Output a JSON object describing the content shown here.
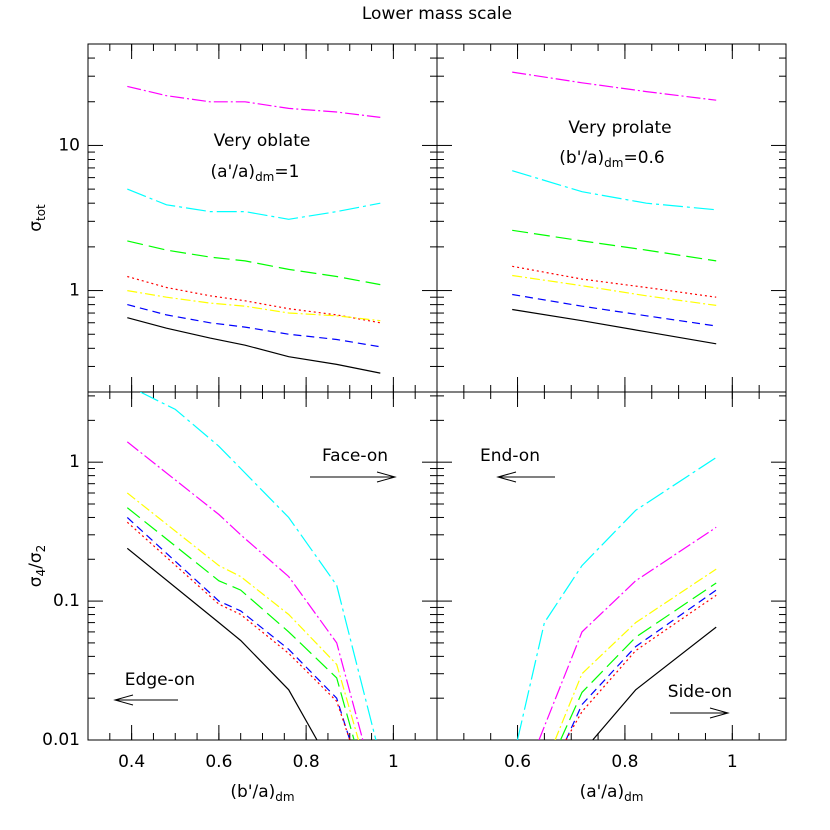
{
  "title": "Lower mass scale",
  "chart_data": [
    {
      "type": "line",
      "panel": "top-left",
      "ylog": true,
      "ylim": [
        0.2,
        50
      ],
      "xlim": [
        0.3,
        1.1
      ],
      "yticks": [
        1,
        10
      ],
      "ylabel": [
        "σ",
        "tot"
      ],
      "annotation": [
        [
          "Very oblate"
        ],
        [
          "(a'/a)",
          "dm",
          "=1"
        ]
      ],
      "series": [
        {
          "color": "#ff00ff",
          "dash": "14,3,2,3",
          "x": [
            0.39,
            0.48,
            0.58,
            0.66,
            0.76,
            0.87,
            0.97
          ],
          "values": [
            25.5,
            22,
            20,
            20,
            18,
            17,
            15.6
          ]
        },
        {
          "color": "#00ffff",
          "dash": "20,4,3,4",
          "x": [
            0.39,
            0.48,
            0.58,
            0.66,
            0.76,
            0.87,
            0.97
          ],
          "values": [
            5.0,
            3.9,
            3.5,
            3.5,
            3.1,
            3.5,
            4.0
          ]
        },
        {
          "color": "#00ff00",
          "dash": "16,6",
          "x": [
            0.39,
            0.48,
            0.58,
            0.66,
            0.76,
            0.87,
            0.97
          ],
          "values": [
            2.2,
            1.9,
            1.7,
            1.6,
            1.4,
            1.25,
            1.1
          ]
        },
        {
          "color": "#ff0000",
          "dash": "2,3",
          "x": [
            0.39,
            0.48,
            0.58,
            0.66,
            0.76,
            0.87,
            0.97
          ],
          "values": [
            1.25,
            1.05,
            0.92,
            0.85,
            0.75,
            0.68,
            0.6
          ]
        },
        {
          "color": "#ffff00",
          "dash": "10,3,2,3",
          "x": [
            0.39,
            0.48,
            0.58,
            0.66,
            0.76,
            0.87,
            0.97
          ],
          "values": [
            1.0,
            0.9,
            0.82,
            0.78,
            0.7,
            0.67,
            0.62
          ]
        },
        {
          "color": "#0000ff",
          "dash": "8,5",
          "x": [
            0.39,
            0.48,
            0.58,
            0.66,
            0.76,
            0.87,
            0.97
          ],
          "values": [
            0.8,
            0.68,
            0.6,
            0.56,
            0.5,
            0.46,
            0.41
          ]
        },
        {
          "color": "#000000",
          "dash": "none",
          "x": [
            0.39,
            0.48,
            0.58,
            0.66,
            0.76,
            0.87,
            0.97
          ],
          "values": [
            0.65,
            0.55,
            0.47,
            0.42,
            0.35,
            0.31,
            0.27
          ]
        }
      ]
    },
    {
      "type": "line",
      "panel": "top-right",
      "ylog": true,
      "ylim": [
        0.2,
        50
      ],
      "xlim": [
        0.45,
        1.1
      ],
      "annotation": [
        [
          "Very prolate"
        ],
        [
          "(b'/a)",
          "dm",
          "=0.6"
        ]
      ],
      "series": [
        {
          "color": "#ff00ff",
          "dash": "14,3,2,3",
          "x": [
            0.59,
            0.72,
            0.84,
            0.97
          ],
          "values": [
            32,
            27,
            23.5,
            20.5
          ]
        },
        {
          "color": "#00ffff",
          "dash": "20,4,3,4",
          "x": [
            0.59,
            0.72,
            0.84,
            0.97
          ],
          "values": [
            6.7,
            4.8,
            4.0,
            3.6
          ]
        },
        {
          "color": "#00ff00",
          "dash": "16,6",
          "x": [
            0.59,
            0.72,
            0.84,
            0.97
          ],
          "values": [
            2.6,
            2.2,
            1.9,
            1.6
          ]
        },
        {
          "color": "#ff0000",
          "dash": "2,3",
          "x": [
            0.59,
            0.72,
            0.84,
            0.97
          ],
          "values": [
            1.47,
            1.2,
            1.05,
            0.9
          ]
        },
        {
          "color": "#ffff00",
          "dash": "10,3,2,3",
          "x": [
            0.59,
            0.72,
            0.84,
            0.97
          ],
          "values": [
            1.27,
            1.08,
            0.92,
            0.79
          ]
        },
        {
          "color": "#0000ff",
          "dash": "8,5",
          "x": [
            0.59,
            0.72,
            0.84,
            0.97
          ],
          "values": [
            0.94,
            0.78,
            0.67,
            0.57
          ]
        },
        {
          "color": "#000000",
          "dash": "none",
          "x": [
            0.59,
            0.72,
            0.84,
            0.97
          ],
          "values": [
            0.74,
            0.62,
            0.52,
            0.43
          ]
        }
      ]
    },
    {
      "type": "line",
      "panel": "bottom-left",
      "ylog": true,
      "ylim": [
        0.01,
        3.2
      ],
      "xlim": [
        0.3,
        1.1
      ],
      "yticks": [
        0.01,
        0.1,
        1
      ],
      "xticks": [
        0.4,
        0.6,
        0.8,
        1
      ],
      "ylabel": [
        "σ",
        "4",
        "/σ",
        "2"
      ],
      "xlabel": [
        "(b'/a)",
        "dm"
      ],
      "notes": [
        {
          "text": "Face-on",
          "arrow": "right"
        },
        {
          "text": "Edge-on",
          "arrow": "left"
        }
      ],
      "series": [
        {
          "color": "#00ffff",
          "dash": "20,4,3,4",
          "x": [
            0.42,
            0.5,
            0.6,
            0.65,
            0.76,
            0.87,
            0.96
          ],
          "values": [
            3.2,
            2.4,
            1.3,
            0.9,
            0.4,
            0.13,
            0.01
          ]
        },
        {
          "color": "#ff00ff",
          "dash": "14,3,2,3",
          "x": [
            0.39,
            0.6,
            0.65,
            0.76,
            0.87,
            0.93
          ],
          "values": [
            1.4,
            0.42,
            0.3,
            0.15,
            0.05,
            0.01
          ]
        },
        {
          "color": "#ffff00",
          "dash": "10,3,2,3",
          "x": [
            0.39,
            0.6,
            0.65,
            0.76,
            0.87,
            0.92
          ],
          "values": [
            0.6,
            0.18,
            0.15,
            0.08,
            0.035,
            0.01
          ]
        },
        {
          "color": "#00ff00",
          "dash": "16,6",
          "x": [
            0.39,
            0.6,
            0.65,
            0.76,
            0.87,
            0.91
          ],
          "values": [
            0.47,
            0.14,
            0.12,
            0.06,
            0.028,
            0.01
          ]
        },
        {
          "color": "#0000ff",
          "dash": "8,5",
          "x": [
            0.39,
            0.6,
            0.65,
            0.76,
            0.87,
            0.9
          ],
          "values": [
            0.4,
            0.1,
            0.085,
            0.045,
            0.02,
            0.01
          ]
        },
        {
          "color": "#ff0000",
          "dash": "2,3",
          "x": [
            0.39,
            0.6,
            0.65,
            0.76,
            0.87,
            0.9
          ],
          "values": [
            0.37,
            0.095,
            0.08,
            0.042,
            0.019,
            0.01
          ]
        },
        {
          "color": "#000000",
          "dash": "none",
          "x": [
            0.39,
            0.6,
            0.65,
            0.76,
            0.825
          ],
          "values": [
            0.24,
            0.07,
            0.052,
            0.023,
            0.01
          ]
        }
      ]
    },
    {
      "type": "line",
      "panel": "bottom-right",
      "ylog": true,
      "ylim": [
        0.01,
        3.2
      ],
      "xlim": [
        0.45,
        1.1
      ],
      "xticks": [
        0.6,
        0.8,
        1
      ],
      "xlabel": [
        "(a'/a)",
        "dm"
      ],
      "notes": [
        {
          "text": "End-on",
          "arrow": "left"
        },
        {
          "text": "Side-on",
          "arrow": "right"
        }
      ],
      "series": [
        {
          "color": "#00ffff",
          "dash": "20,4,3,4",
          "x": [
            0.6,
            0.65,
            0.72,
            0.82,
            0.97
          ],
          "values": [
            0.01,
            0.07,
            0.18,
            0.45,
            1.08
          ]
        },
        {
          "color": "#ff00ff",
          "dash": "14,3,2,3",
          "x": [
            0.64,
            0.72,
            0.82,
            0.97
          ],
          "values": [
            0.01,
            0.06,
            0.14,
            0.34
          ]
        },
        {
          "color": "#ffff00",
          "dash": "10,3,2,3",
          "x": [
            0.67,
            0.72,
            0.82,
            0.97
          ],
          "values": [
            0.01,
            0.03,
            0.07,
            0.17
          ]
        },
        {
          "color": "#00ff00",
          "dash": "16,6",
          "x": [
            0.68,
            0.72,
            0.82,
            0.97
          ],
          "values": [
            0.01,
            0.022,
            0.055,
            0.135
          ]
        },
        {
          "color": "#0000ff",
          "dash": "8,5",
          "x": [
            0.69,
            0.72,
            0.82,
            0.97
          ],
          "values": [
            0.01,
            0.018,
            0.047,
            0.12
          ]
        },
        {
          "color": "#ff0000",
          "dash": "2,3",
          "x": [
            0.69,
            0.72,
            0.82,
            0.97
          ],
          "values": [
            0.01,
            0.016,
            0.044,
            0.11
          ]
        },
        {
          "color": "#000000",
          "dash": "none",
          "x": [
            0.74,
            0.82,
            0.97
          ],
          "values": [
            0.01,
            0.023,
            0.065
          ]
        }
      ]
    }
  ]
}
